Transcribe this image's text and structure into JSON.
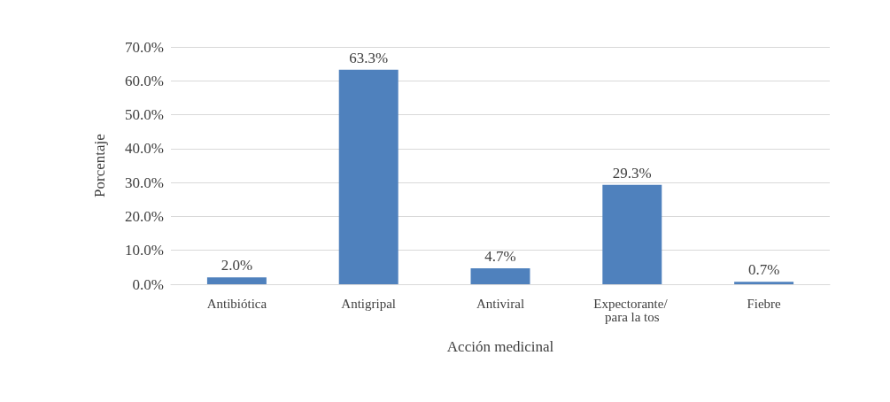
{
  "chart_data": {
    "type": "bar",
    "categories": [
      "Antibiótica",
      "Antigripal",
      "Antiviral",
      "Expectorante/ para la tos",
      "Fiebre"
    ],
    "values": [
      2.0,
      63.3,
      4.7,
      29.3,
      0.7
    ],
    "value_labels": [
      "2.0%",
      "63.3%",
      "4.7%",
      "29.3%",
      "0.7%"
    ],
    "color": "#4f81bd",
    "xlabel": "Acción medicinal",
    "ylabel": "Porcentaje",
    "ylim": [
      0,
      70
    ],
    "yticks": [
      {
        "value": 0,
        "label": "0.0%"
      },
      {
        "value": 10,
        "label": "10.0%"
      },
      {
        "value": 20,
        "label": "20.0%"
      },
      {
        "value": 30,
        "label": "30.0%"
      },
      {
        "value": 40,
        "label": "40.0%"
      },
      {
        "value": 50,
        "label": "50.0%"
      },
      {
        "value": 60,
        "label": "60.0%"
      },
      {
        "value": 70,
        "label": "70.0%"
      }
    ],
    "grid": "y"
  }
}
